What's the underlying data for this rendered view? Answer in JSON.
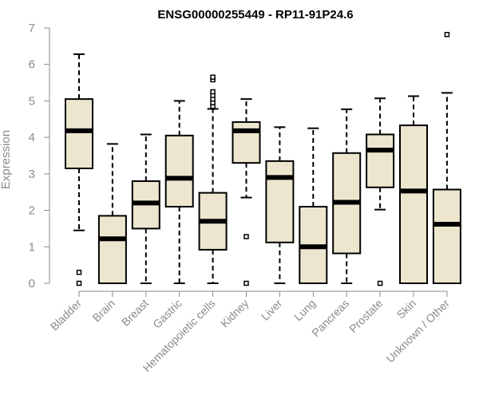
{
  "chart_data": {
    "type": "box",
    "title": "ENSG00000255449 - RP11-91P24.6",
    "xlabel": "",
    "ylabel": "Expression",
    "ylim": [
      0,
      7
    ],
    "yticks": [
      0,
      1,
      2,
      3,
      4,
      5,
      6,
      7
    ],
    "grid": false,
    "box_fill": "#ede6cf",
    "categories": [
      "Bladder",
      "Brain",
      "Breast",
      "Gastric",
      "Hematopoietic cells",
      "Kidney",
      "Liver",
      "Lung",
      "Pancreas",
      "Prostate",
      "Skin",
      "Unknown / Other"
    ],
    "boxes": [
      {
        "min": 1.45,
        "q1": 3.15,
        "median": 4.18,
        "q3": 5.05,
        "max": 6.28,
        "outliers": [
          0.3,
          0.0
        ]
      },
      {
        "min": 0.0,
        "q1": 0.0,
        "median": 1.22,
        "q3": 1.85,
        "max": 3.82,
        "outliers": []
      },
      {
        "min": 0.0,
        "q1": 1.5,
        "median": 2.2,
        "q3": 2.8,
        "max": 4.08,
        "outliers": []
      },
      {
        "min": 0.0,
        "q1": 2.1,
        "median": 2.88,
        "q3": 4.05,
        "max": 5.0,
        "outliers": []
      },
      {
        "min": 0.0,
        "q1": 0.92,
        "median": 1.7,
        "q3": 2.48,
        "max": 4.78,
        "outliers": [
          4.85,
          4.95,
          5.05,
          5.15,
          5.25,
          5.58,
          5.65
        ]
      },
      {
        "min": 2.35,
        "q1": 3.3,
        "median": 4.18,
        "q3": 4.42,
        "max": 5.05,
        "outliers": [
          1.28,
          0.0
        ]
      },
      {
        "min": 0.0,
        "q1": 1.12,
        "median": 2.9,
        "q3": 3.35,
        "max": 4.28,
        "outliers": []
      },
      {
        "min": 0.0,
        "q1": 0.0,
        "median": 1.0,
        "q3": 2.1,
        "max": 4.25,
        "outliers": []
      },
      {
        "min": 0.0,
        "q1": 0.82,
        "median": 2.22,
        "q3": 3.57,
        "max": 4.77,
        "outliers": []
      },
      {
        "min": 2.02,
        "q1": 2.63,
        "median": 3.65,
        "q3": 4.08,
        "max": 5.07,
        "outliers": [
          0.0
        ]
      },
      {
        "min": 0.0,
        "q1": 0.0,
        "median": 2.53,
        "q3": 4.33,
        "max": 5.13,
        "outliers": []
      },
      {
        "min": 0.0,
        "q1": 0.0,
        "median": 1.62,
        "q3": 2.57,
        "max": 5.22,
        "outliers": [
          6.82
        ]
      }
    ]
  }
}
